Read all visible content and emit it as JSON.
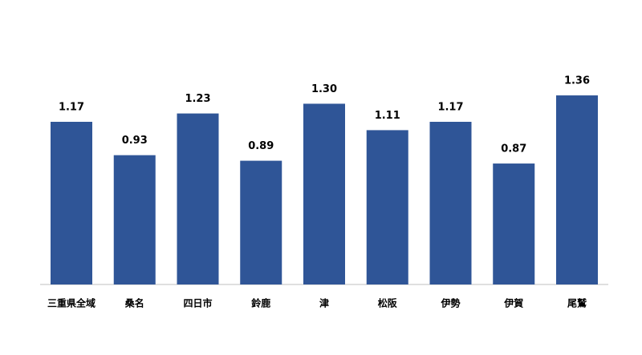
{
  "chart_data": {
    "type": "bar",
    "categories": [
      "三重県全域",
      "桑名",
      "四日市",
      "鈴鹿",
      "津",
      "松阪",
      "伊勢",
      "伊賀",
      "尾鷲"
    ],
    "values": [
      1.17,
      0.93,
      1.23,
      0.89,
      1.3,
      1.11,
      1.17,
      0.87,
      1.36
    ],
    "value_labels": [
      "1.17",
      "0.93",
      "1.23",
      "0.89",
      "1.30",
      "1.11",
      "1.17",
      "0.87",
      "1.36"
    ],
    "color": "#2f5597"
  }
}
